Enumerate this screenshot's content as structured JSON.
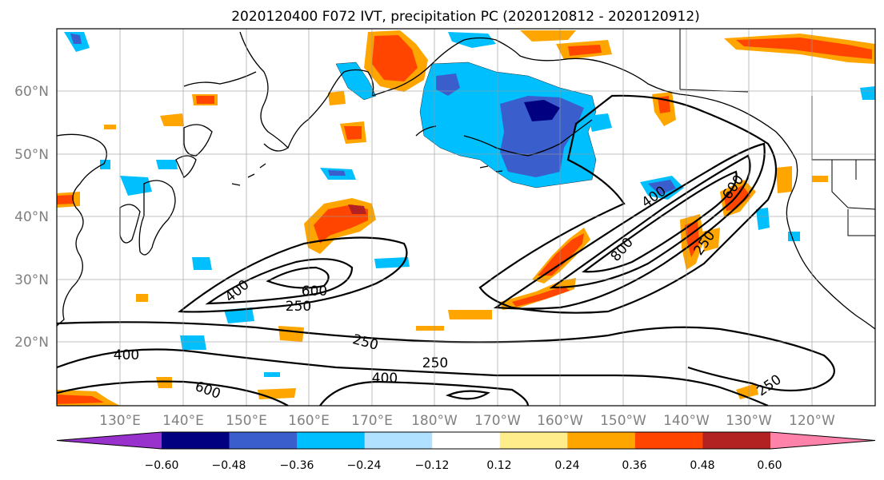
{
  "title": "2020120400 F072 IVT, precipitation PC (2020120812 - 2020120912)",
  "map": {
    "lon_labels": [
      "130°E",
      "140°E",
      "150°E",
      "160°E",
      "170°E",
      "180°W",
      "170°W",
      "160°W",
      "150°W",
      "140°W",
      "130°W",
      "120°W"
    ],
    "lat_labels": [
      "60°N",
      "50°N",
      "40°N",
      "30°N",
      "20°N"
    ],
    "ivt_contour_levels": [
      250,
      400,
      600,
      800
    ],
    "ivt_contour_labels": [
      "400",
      "600",
      "250",
      "400",
      "250",
      "250",
      "400",
      "600",
      "400",
      "800",
      "600",
      "250",
      "250"
    ]
  },
  "colorbar": {
    "ticks": [
      "−0.60",
      "−0.48",
      "−0.36",
      "−0.24",
      "−0.12",
      "0.12",
      "0.24",
      "0.36",
      "0.48",
      "0.60"
    ],
    "colors": [
      "#9932cc",
      "#000080",
      "#3a5fcd",
      "#00bfff",
      "#b0e2ff",
      "#ffffff",
      "#ffec8b",
      "#ffa500",
      "#ff4500",
      "#b22222",
      "#ff82ab"
    ],
    "extend": "both"
  }
}
